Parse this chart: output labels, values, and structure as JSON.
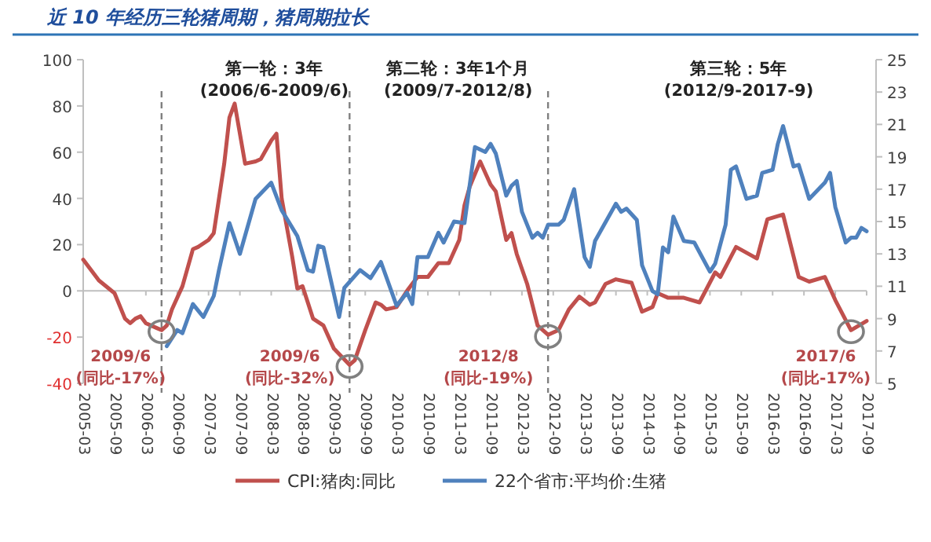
{
  "chart_data": {
    "type": "line",
    "title": "近 10 年经历三轮猪周期，猪周期拉长",
    "xlim": [
      "2005-03",
      "2017-09"
    ],
    "xticks": [
      "2005-03",
      "2005-09",
      "2006-03",
      "2006-09",
      "2007-03",
      "2007-09",
      "2008-03",
      "2008-09",
      "2009-03",
      "2009-09",
      "2010-03",
      "2010-09",
      "2011-03",
      "2011-09",
      "2012-03",
      "2012-09",
      "2013-03",
      "2013-09",
      "2014-03",
      "2014-09",
      "2015-03",
      "2015-09",
      "2016-03",
      "2016-09",
      "2017-03",
      "2017-09"
    ],
    "ylim": [
      -40,
      100
    ],
    "yticks": [
      -40,
      -20,
      0,
      20,
      40,
      60,
      80,
      100
    ],
    "y2lim": [
      5,
      25
    ],
    "y2ticks": [
      5,
      7,
      9,
      11,
      13,
      15,
      17,
      19,
      21,
      23,
      25
    ],
    "legend": "bottom",
    "marker": "none",
    "line_style": "solid",
    "series": [
      {
        "name": "CPI:猪肉:同比",
        "color": "#c0504d",
        "x": [
          "2005-03",
          "2005-06",
          "2005-09",
          "2005-11",
          "2005-12",
          "2006-01",
          "2006-02",
          "2006-03",
          "2006-05",
          "2006-06",
          "2006-07",
          "2006-08",
          "2006-10",
          "2006-12",
          "2007-01",
          "2007-03",
          "2007-04",
          "2007-06",
          "2007-07",
          "2007-08",
          "2007-10",
          "2007-12",
          "2008-01",
          "2008-03",
          "2008-04",
          "2008-05",
          "2008-07",
          "2008-08",
          "2008-09",
          "2008-10",
          "2008-11",
          "2009-01",
          "2009-03",
          "2009-06",
          "2009-07",
          "2009-09",
          "2009-11",
          "2009-12",
          "2010-01",
          "2010-03",
          "2010-05",
          "2010-07",
          "2010-09",
          "2010-11",
          "2011-01",
          "2011-03",
          "2011-04",
          "2011-05",
          "2011-07",
          "2011-09",
          "2011-10",
          "2011-12",
          "2012-01",
          "2012-02",
          "2012-04",
          "2012-06",
          "2012-08",
          "2012-10",
          "2012-12",
          "2013-02",
          "2013-04",
          "2013-05",
          "2013-07",
          "2013-09",
          "2013-12",
          "2014-02",
          "2014-04",
          "2014-05",
          "2014-07",
          "2014-10",
          "2015-01",
          "2015-04",
          "2015-05",
          "2015-08",
          "2015-12",
          "2016-02",
          "2016-05",
          "2016-08",
          "2016-10",
          "2017-01",
          "2017-03",
          "2017-06",
          "2017-09"
        ],
        "values": [
          13.5,
          4.5,
          -1,
          -12,
          -14,
          -12,
          -11,
          -14,
          -16,
          -17,
          -15,
          -8,
          2,
          18,
          19,
          22,
          25,
          55,
          75,
          81,
          55,
          56,
          57,
          65,
          68,
          40,
          15,
          1,
          2,
          -5,
          -12,
          -15,
          -25,
          -32,
          -30,
          -17,
          -5,
          -6,
          -8,
          -7,
          0,
          6,
          6,
          12,
          12,
          22,
          37,
          45,
          56,
          46,
          43,
          22,
          25,
          16,
          3,
          -15,
          -19,
          -17,
          -8,
          -2.5,
          -6,
          -5,
          3,
          5,
          3.5,
          -9,
          -7,
          -1,
          -3,
          -3,
          -5,
          8,
          6,
          19,
          14,
          31,
          33,
          6,
          4,
          6,
          -4,
          -17,
          -13
        ]
      },
      {
        "name": "22个省市:平均价:生猪",
        "color": "#4f81bd",
        "axis": "y2",
        "x": [
          "2006-07",
          "2006-09",
          "2006-10",
          "2006-12",
          "2007-02",
          "2007-04",
          "2007-05",
          "2007-07",
          "2007-09",
          "2007-12",
          "2008-03",
          "2008-05",
          "2008-08",
          "2008-10",
          "2008-11",
          "2008-12",
          "2009-01",
          "2009-04",
          "2009-05",
          "2009-08",
          "2009-10",
          "2009-12",
          "2010-03",
          "2010-05",
          "2010-06",
          "2010-07",
          "2010-09",
          "2010-11",
          "2010-12",
          "2011-02",
          "2011-04",
          "2011-06",
          "2011-08",
          "2011-09",
          "2011-10",
          "2011-12",
          "2012-01",
          "2012-02",
          "2012-03",
          "2012-05",
          "2012-06",
          "2012-07",
          "2012-08",
          "2012-10",
          "2012-11",
          "2013-01",
          "2013-03",
          "2013-04",
          "2013-05",
          "2013-09",
          "2013-10",
          "2013-11",
          "2014-01",
          "2014-02",
          "2014-04",
          "2014-05",
          "2014-06",
          "2014-07",
          "2014-08",
          "2014-10",
          "2014-12",
          "2015-03",
          "2015-04",
          "2015-06",
          "2015-07",
          "2015-08",
          "2015-10",
          "2015-12",
          "2016-01",
          "2016-03",
          "2016-04",
          "2016-05",
          "2016-07",
          "2016-08",
          "2016-10",
          "2017-01",
          "2017-02",
          "2017-03",
          "2017-05",
          "2017-06",
          "2017-07",
          "2017-08",
          "2017-09"
        ],
        "values": [
          7.3,
          8.3,
          8.1,
          9.9,
          9.1,
          10.4,
          12.0,
          14.9,
          13.0,
          16.4,
          17.4,
          15.7,
          14.1,
          12.0,
          11.9,
          13.5,
          13.4,
          9.1,
          10.9,
          12.0,
          11.5,
          12.5,
          9.8,
          10.6,
          9.9,
          12.8,
          12.8,
          14.3,
          13.7,
          15.0,
          14.9,
          19.6,
          19.3,
          19.8,
          19.2,
          16.6,
          17.2,
          17.5,
          15.6,
          14.0,
          14.3,
          14.0,
          14.8,
          14.8,
          15.1,
          17.0,
          12.8,
          12.2,
          13.8,
          16.1,
          15.6,
          15.8,
          15.1,
          12.3,
          10.7,
          10.5,
          13.4,
          13.1,
          15.3,
          13.8,
          13.7,
          11.9,
          12.4,
          14.8,
          18.2,
          18.4,
          16.4,
          16.6,
          18.0,
          18.2,
          19.8,
          20.9,
          18.4,
          18.5,
          16.4,
          17.4,
          18.0,
          15.9,
          13.7,
          14.0,
          14.0,
          14.6,
          14.4
        ]
      }
    ],
    "ref_lines": [
      {
        "axis": "x",
        "value": "2006-06",
        "color": "#808080",
        "line_style": "dashed"
      },
      {
        "axis": "x",
        "value": "2009-06",
        "color": "#808080",
        "line_style": "dashed"
      },
      {
        "axis": "x",
        "value": "2012-08",
        "color": "#808080",
        "line_style": "dashed"
      }
    ],
    "annotations": [
      "第一轮：3年",
      "(2006/6-2009/6)",
      "第二轮：3年1个月",
      "(2009/7-2012/8)",
      "第三轮：5年",
      "(2012/9-2017-9)",
      {
        "text": "2009/6 (同比-17%)",
        "x": "2006-06",
        "y": -17
      },
      {
        "text": "2009/6 (同比-32%)",
        "x": "2009-06",
        "y": -32
      },
      {
        "text": "2012/8 (同比-19%)",
        "x": "2012-08",
        "y": -19
      },
      {
        "text": "2017/6 (同比-17%)",
        "x": "2017-06",
        "y": -17
      }
    ]
  }
}
